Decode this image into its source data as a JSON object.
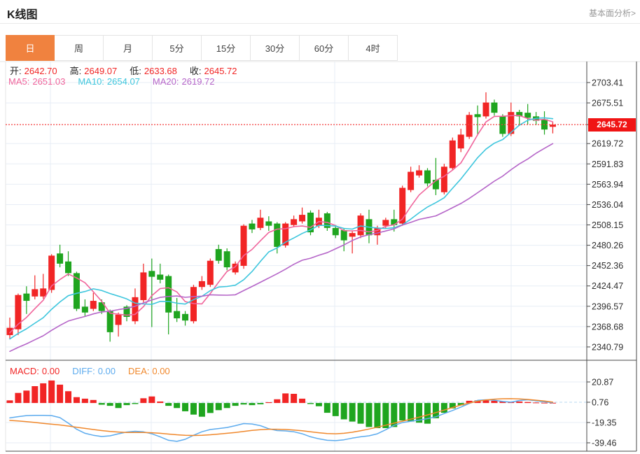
{
  "header": {
    "title": "K线图",
    "link": "基本面分析>"
  },
  "tabs": {
    "items": [
      "日",
      "周",
      "月",
      "5分",
      "15分",
      "30分",
      "60分",
      "4时"
    ],
    "active_index": 0
  },
  "legend_ohlc": [
    {
      "label": "开:",
      "value": "2642.70"
    },
    {
      "label": "高:",
      "value": "2649.07"
    },
    {
      "label": "低:",
      "value": "2633.68"
    },
    {
      "label": "收:",
      "value": "2645.72"
    }
  ],
  "legend_ma": [
    {
      "label": "MA5:",
      "value": "2651.03",
      "color": "#f0649b"
    },
    {
      "label": "MA10:",
      "value": "2654.07",
      "color": "#3ec6dd"
    },
    {
      "label": "MA20:",
      "value": "2619.72",
      "color": "#b565c8"
    }
  ],
  "legend_macd": [
    {
      "label": "MACD:",
      "value": "0.00",
      "color": "#f12525"
    },
    {
      "label": "DIFF:",
      "value": "0.00",
      "color": "#5cabee"
    },
    {
      "label": "DEA:",
      "value": "0.00",
      "color": "#f0882c"
    }
  ],
  "price_badge": "2645.72",
  "colors": {
    "up": "#f12525",
    "down": "#1fa51f",
    "ma5": "#f0649b",
    "ma10": "#3ec6dd",
    "ma20": "#b565c8",
    "diff": "#5cabee",
    "dea": "#f0882c",
    "tab_active_bg": "#f0823f",
    "grid": "#e7edf6",
    "zero_dash": "#b9d9f0",
    "border_dark": "#4a4a4a",
    "border_light": "#e6e6e6",
    "axis_text": "#2e2e2e",
    "label_text": "#222222",
    "dotted_line": "#f34040",
    "badge_bg": "#f01414",
    "link": "#999999"
  },
  "chart_data": {
    "type": "candlestick+macd",
    "title": "K线图",
    "period_selected": "日",
    "ohlc_legend": {
      "open": 2642.7,
      "high": 2649.07,
      "low": 2633.68,
      "close": 2645.72
    },
    "ma_legend": {
      "MA5": 2651.03,
      "MA10": 2654.07,
      "MA20": 2619.72
    },
    "current_price": 2645.72,
    "y_ticks_main": [
      2703.41,
      2675.51,
      2619.72,
      2591.83,
      2563.94,
      2536.04,
      2508.15,
      2480.26,
      2452.36,
      2424.47,
      2396.57,
      2368.68,
      2340.79
    ],
    "ylim_main": [
      2322.5,
      2732.2
    ],
    "y_ticks_macd": [
      20.87,
      0.76,
      -19.35,
      -39.46
    ],
    "ylim_macd": [
      -47.5,
      37.5
    ],
    "ma_periods": [
      5,
      10,
      20
    ],
    "candles_format": [
      "open",
      "high",
      "low",
      "close"
    ],
    "candles": [
      [
        2357,
        2381,
        2352,
        2367
      ],
      [
        2365,
        2414,
        2357,
        2412
      ],
      [
        2414,
        2424,
        2386,
        2404
      ],
      [
        2410,
        2439,
        2406,
        2420
      ],
      [
        2410,
        2441,
        2407,
        2421
      ],
      [
        2419,
        2468,
        2415,
        2466
      ],
      [
        2469,
        2481,
        2450,
        2455
      ],
      [
        2458,
        2472,
        2438,
        2442
      ],
      [
        2442,
        2444,
        2390,
        2393
      ],
      [
        2396,
        2406,
        2383,
        2388
      ],
      [
        2393,
        2415,
        2390,
        2404
      ],
      [
        2402,
        2406,
        2386,
        2390
      ],
      [
        2390,
        2392,
        2348,
        2361
      ],
      [
        2371,
        2388,
        2355,
        2385
      ],
      [
        2396,
        2398,
        2376,
        2382
      ],
      [
        2376,
        2421,
        2372,
        2409
      ],
      [
        2405,
        2455,
        2402,
        2443
      ],
      [
        2445,
        2462,
        2368,
        2437
      ],
      [
        2440,
        2455,
        2428,
        2433
      ],
      [
        2438,
        2440,
        2358,
        2388
      ],
      [
        2390,
        2408,
        2375,
        2380
      ],
      [
        2386,
        2390,
        2370,
        2377
      ],
      [
        2376,
        2426,
        2373,
        2423
      ],
      [
        2423,
        2438,
        2419,
        2431
      ],
      [
        2426,
        2462,
        2423,
        2459
      ],
      [
        2475,
        2481,
        2455,
        2459
      ],
      [
        2472,
        2476,
        2446,
        2450
      ],
      [
        2443,
        2458,
        2440,
        2455
      ],
      [
        2452,
        2509,
        2448,
        2507
      ],
      [
        2510,
        2515,
        2497,
        2502
      ],
      [
        2504,
        2529,
        2501,
        2518
      ],
      [
        2513,
        2520,
        2500,
        2507
      ],
      [
        2510,
        2512,
        2469,
        2478
      ],
      [
        2480,
        2512,
        2477,
        2510
      ],
      [
        2508,
        2521,
        2505,
        2516
      ],
      [
        2513,
        2532,
        2510,
        2522
      ],
      [
        2525,
        2528,
        2494,
        2498
      ],
      [
        2507,
        2529,
        2504,
        2518
      ],
      [
        2524,
        2526,
        2500,
        2504
      ],
      [
        2504,
        2508,
        2490,
        2494
      ],
      [
        2501,
        2503,
        2472,
        2487
      ],
      [
        2492,
        2500,
        2469,
        2497
      ],
      [
        2494,
        2524,
        2490,
        2521
      ],
      [
        2516,
        2529,
        2483,
        2494
      ],
      [
        2494,
        2507,
        2481,
        2504
      ],
      [
        2507,
        2518,
        2504,
        2515
      ],
      [
        2516,
        2529,
        2499,
        2508
      ],
      [
        2510,
        2562,
        2507,
        2559
      ],
      [
        2556,
        2588,
        2553,
        2581
      ],
      [
        2576,
        2590,
        2573,
        2583
      ],
      [
        2583,
        2586,
        2561,
        2565
      ],
      [
        2570,
        2600,
        2549,
        2557
      ],
      [
        2553,
        2592,
        2550,
        2588
      ],
      [
        2586,
        2628,
        2583,
        2624
      ],
      [
        2613,
        2640,
        2608,
        2632
      ],
      [
        2629,
        2663,
        2626,
        2659
      ],
      [
        2660,
        2672,
        2632,
        2656
      ],
      [
        2657,
        2690,
        2654,
        2676
      ],
      [
        2676,
        2680,
        2658,
        2662
      ],
      [
        2657,
        2660,
        2629,
        2633
      ],
      [
        2633,
        2676,
        2630,
        2663
      ],
      [
        2663,
        2666,
        2644,
        2657
      ],
      [
        2662,
        2674,
        2646,
        2655
      ],
      [
        2657,
        2663,
        2645,
        2651
      ],
      [
        2653,
        2664,
        2632,
        2639
      ],
      [
        2642.7,
        2649.07,
        2633.68,
        2645.72
      ]
    ],
    "macd": {
      "legend": {
        "MACD": 0.0,
        "DIFF": 0.0,
        "DEA": 0.0
      },
      "hist": [
        2.6,
        10,
        12.3,
        16.7,
        19.5,
        22.3,
        18.2,
        11.7,
        5.8,
        4.3,
        3,
        -1.7,
        -2.8,
        -5,
        -2.1,
        -1,
        4.7,
        6.5,
        1.5,
        -2.8,
        -5,
        -8.2,
        -11.5,
        -13.6,
        -9.9,
        -7.1,
        -5,
        -2.8,
        -1.5,
        -2.1,
        -1.3,
        0.8,
        3.7,
        9.5,
        9.1,
        4.3,
        -1,
        -3.2,
        -9.7,
        -13,
        -16.2,
        -18.4,
        -20.5,
        -23.8,
        -24.9,
        -24.9,
        -23.8,
        -17.3,
        -18.4,
        -19.5,
        -20.5,
        -15.1,
        -9.7,
        -5.4,
        -2.2,
        2.2,
        2.6,
        2.6,
        2.2,
        1.5,
        1,
        1.5,
        1,
        0.5,
        0.3,
        0.2
      ],
      "diff": [
        -14.8,
        -13.5,
        -12.5,
        -12.3,
        -12.3,
        -12.5,
        -14.5,
        -20,
        -26,
        -30,
        -32,
        -33.2,
        -32.5,
        -30.5,
        -28.8,
        -28,
        -28.6,
        -30.5,
        -33.5,
        -37,
        -38,
        -36,
        -32,
        -28.5,
        -26.3,
        -25.3,
        -24.3,
        -22.5,
        -20.4,
        -20.8,
        -22.5,
        -25.5,
        -27.3,
        -27.7,
        -28.5,
        -30.5,
        -33.5,
        -35.5,
        -37,
        -37.3,
        -36.5,
        -34.8,
        -33.5,
        -32.5,
        -30.5,
        -26.5,
        -22.2,
        -19.4,
        -18,
        -17,
        -15.5,
        -13.7,
        -10.5,
        -7.4,
        -4,
        -0.5,
        2.6,
        3.2,
        2.8,
        1.5,
        0.8,
        2.5,
        3.2,
        2.2,
        1.2,
        0.3
      ],
      "dea": [
        -17.3,
        -17.8,
        -18.5,
        -19.3,
        -20.2,
        -21,
        -21.8,
        -22.8,
        -24,
        -25.2,
        -26.3,
        -27.3,
        -28.2,
        -28.8,
        -29.2,
        -29.3,
        -29.3,
        -29.5,
        -30,
        -30.8,
        -31.5,
        -32,
        -32.2,
        -32,
        -31.5,
        -30.8,
        -30,
        -29.2,
        -28.2,
        -27.2,
        -26.5,
        -26,
        -26,
        -26.2,
        -26.8,
        -27.5,
        -28.5,
        -29.5,
        -30.3,
        -30.5,
        -30,
        -29,
        -27.5,
        -25.8,
        -24,
        -22,
        -20,
        -18,
        -16,
        -14,
        -11.8,
        -9.5,
        -7,
        -4.5,
        -2,
        0,
        1.8,
        3,
        3.8,
        4.2,
        4.3,
        4,
        3.5,
        2.8,
        2,
        0.8
      ]
    }
  }
}
